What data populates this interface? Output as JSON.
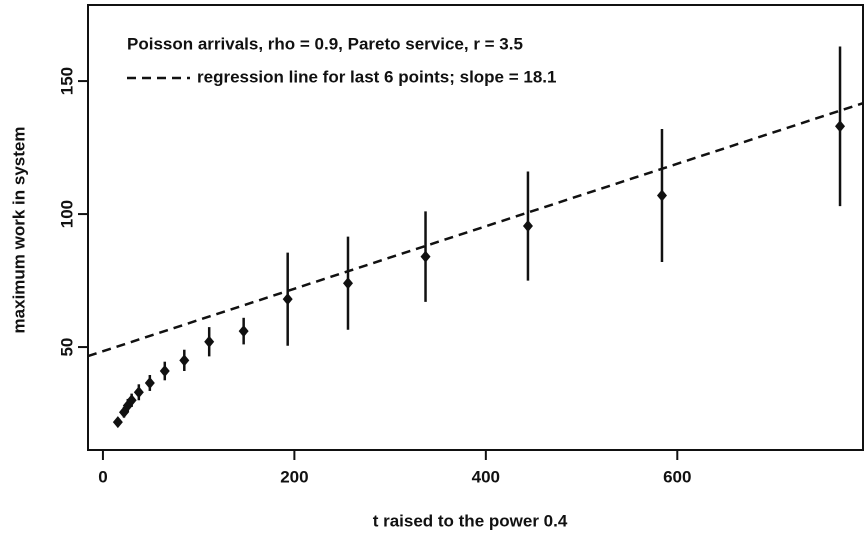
{
  "chart_data": {
    "type": "scatter",
    "xlabel": "t raised to the power 0.4",
    "ylabel": "maximum work in system",
    "legend_text": "Poisson arrivals, rho = 0.9, Pareto service, r = 3.5",
    "regression_label": "regression line for last 6 points; slope = 18.1",
    "regression_values": [
      46.6,
      141.7
    ],
    "xlim": [
      -15.6,
      794
    ],
    "ylim": [
      11.3,
      178.6
    ],
    "xticks": [
      0,
      200,
      400,
      600
    ],
    "yticks": [
      50,
      100,
      150
    ],
    "color": "#111111",
    "series": [
      {
        "x": [
          15.6,
          22,
          26,
          30,
          37.5,
          49,
          64.6,
          85,
          111,
          147,
          193,
          256,
          337,
          444,
          584,
          770
        ],
        "values": [
          21.8,
          25.5,
          28,
          30,
          33,
          36.5,
          41,
          45,
          52,
          56,
          68,
          74,
          84,
          95.5,
          107,
          133
        ],
        "errors": [
          1.5,
          2,
          2.5,
          2.5,
          3,
          3,
          3.5,
          4,
          5.5,
          5,
          17.5,
          17.5,
          17,
          20.5,
          25,
          30
        ]
      }
    ]
  }
}
